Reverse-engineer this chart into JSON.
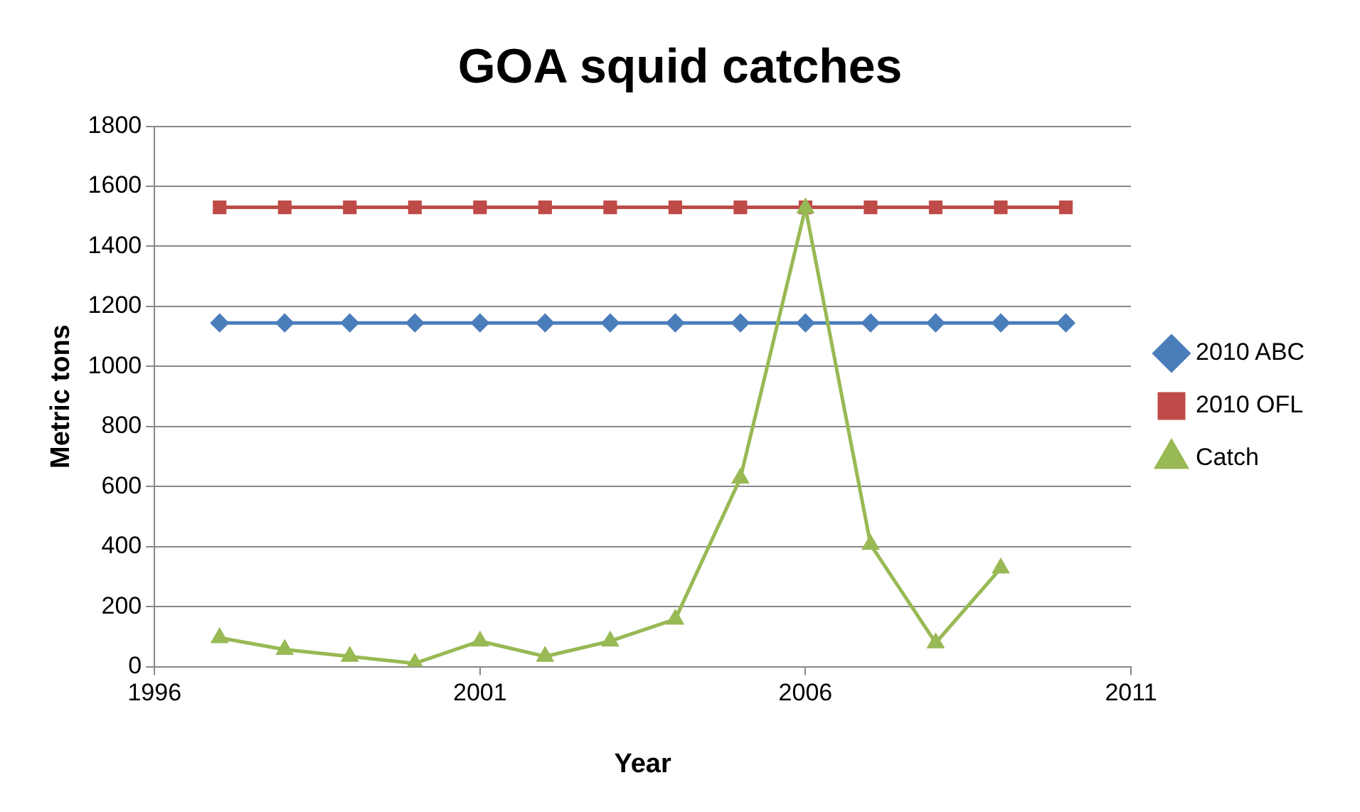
{
  "chart_data": {
    "type": "line",
    "title": "GOA squid catches",
    "xlabel": "Year",
    "ylabel": "Metric tons",
    "x": [
      1997,
      1998,
      1999,
      2000,
      2001,
      2002,
      2003,
      2004,
      2005,
      2006,
      2007,
      2008,
      2009,
      2010
    ],
    "series": [
      {
        "name": "2010 ABC",
        "color": "#4a7ebb",
        "marker": "diamond",
        "values": [
          1145,
          1145,
          1145,
          1145,
          1145,
          1145,
          1145,
          1145,
          1145,
          1145,
          1145,
          1145,
          1145,
          1145
        ]
      },
      {
        "name": "2010 OFL",
        "color": "#be4b48",
        "marker": "square",
        "values": [
          1530,
          1530,
          1530,
          1530,
          1530,
          1530,
          1530,
          1530,
          1530,
          1530,
          1530,
          1530,
          1530,
          1530
        ]
      },
      {
        "name": "Catch",
        "color": "#98b954",
        "marker": "triangle",
        "values": [
          96,
          57,
          34,
          11,
          85,
          34,
          85,
          158,
          628,
          1528,
          407,
          79,
          328,
          null
        ]
      }
    ],
    "xlim": [
      1996,
      2011
    ],
    "xticks": [
      1996,
      2001,
      2006,
      2011
    ],
    "ylim": [
      0,
      1800
    ],
    "yticks": [
      0,
      200,
      400,
      600,
      800,
      1000,
      1200,
      1400,
      1600,
      1800
    ],
    "grid": "y",
    "legend": "right",
    "line_style": "solid"
  }
}
